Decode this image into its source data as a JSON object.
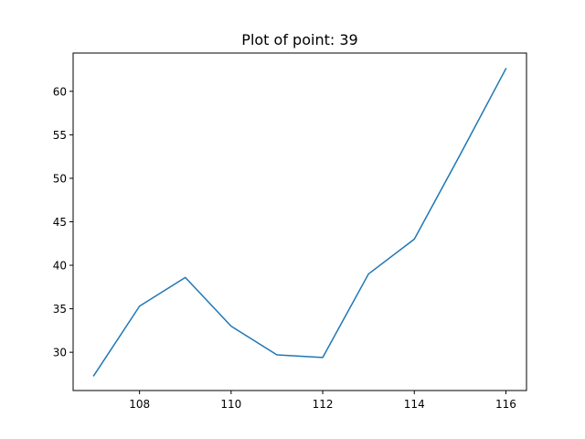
{
  "chart_data": {
    "type": "line",
    "title": "Plot of point: 39",
    "xlabel": "",
    "ylabel": "",
    "xlim": [
      106.55,
      116.45
    ],
    "ylim": [
      25.6,
      64.4
    ],
    "xticks": [
      108,
      110,
      112,
      114,
      116
    ],
    "yticks": [
      30,
      35,
      40,
      45,
      50,
      55,
      60
    ],
    "grid": false,
    "series": [
      {
        "color": "#1f77b4",
        "x": [
          107,
          108,
          109,
          110,
          111,
          112,
          113,
          114,
          115,
          116
        ],
        "y": [
          27.3,
          35.3,
          38.6,
          33.0,
          29.7,
          29.4,
          39.0,
          43.0,
          52.7,
          62.6
        ]
      }
    ]
  }
}
